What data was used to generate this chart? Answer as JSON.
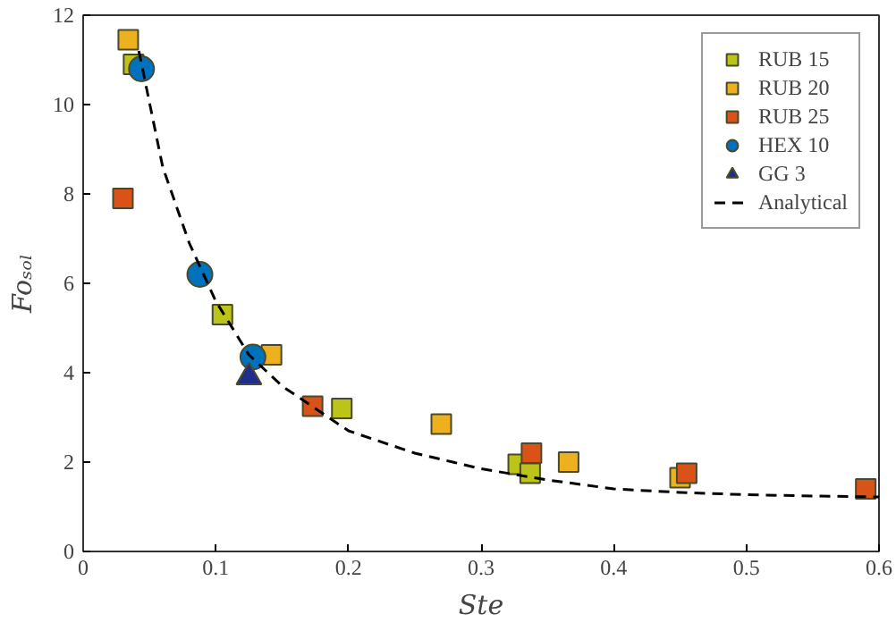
{
  "chart_data": {
    "type": "scatter",
    "xlabel": "Ste",
    "ylabel": "Foₛₒₗ",
    "xlim": [
      0,
      0.6
    ],
    "ylim": [
      0,
      12
    ],
    "xticks": [
      0,
      0.1,
      0.2,
      0.3,
      0.4,
      0.5,
      0.6
    ],
    "yticks": [
      0,
      2,
      4,
      6,
      8,
      10,
      12
    ],
    "grid": false,
    "legend": "top right",
    "series": [
      {
        "name": "RUB 15",
        "color": "#bcc41a",
        "marker": "square",
        "x": [
          0.038,
          0.105,
          0.195,
          0.328,
          0.337
        ],
        "values": [
          10.9,
          5.3,
          3.2,
          1.95,
          1.75
        ]
      },
      {
        "name": "RUB 20",
        "color": "#edb120",
        "marker": "square",
        "x": [
          0.034,
          0.142,
          0.27,
          0.366,
          0.45
        ],
        "values": [
          11.45,
          4.4,
          2.85,
          2.0,
          1.65
        ]
      },
      {
        "name": "RUB 25",
        "color": "#d95319",
        "marker": "square",
        "x": [
          0.03,
          0.173,
          0.338,
          0.455,
          0.59
        ],
        "values": [
          7.9,
          3.25,
          2.2,
          1.75,
          1.4
        ]
      },
      {
        "name": "HEX 10",
        "color": "#0072bd",
        "marker": "circle",
        "x": [
          0.044,
          0.088,
          0.128
        ],
        "values": [
          10.8,
          6.2,
          4.35
        ]
      },
      {
        "name": "GG 3",
        "color": "#1f2e8c",
        "marker": "triangle",
        "x": [
          0.125
        ],
        "values": [
          3.9
        ]
      },
      {
        "name": "Analytical",
        "type": "line",
        "color": "#000000",
        "line_style": "dashed",
        "x": [
          0.042,
          0.06,
          0.08,
          0.1,
          0.125,
          0.15,
          0.2,
          0.25,
          0.3,
          0.35,
          0.4,
          0.45,
          0.5,
          0.55,
          0.6
        ],
        "values": [
          11.2,
          8.6,
          6.9,
          5.6,
          4.4,
          3.7,
          2.7,
          2.2,
          1.85,
          1.6,
          1.4,
          1.32,
          1.27,
          1.24,
          1.22
        ]
      }
    ]
  }
}
